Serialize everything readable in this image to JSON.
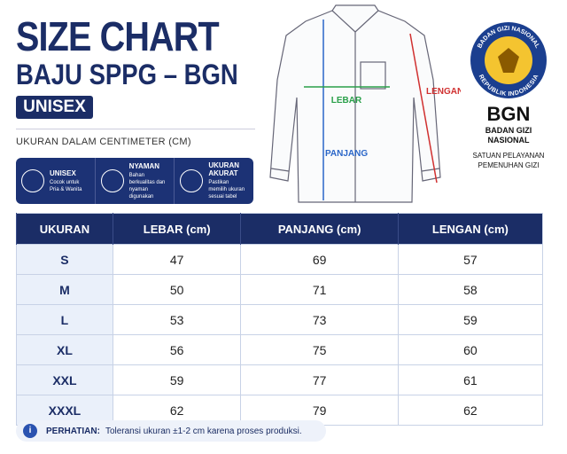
{
  "header": {
    "title": "SIZE CHART",
    "subtitle": "BAJU SPPG – BGN",
    "badge": "UNISEX",
    "note": "UKURAN DALAM CENTIMETER (CM)"
  },
  "features": [
    {
      "title": "UNISEX",
      "description": "Cocok untuk Pria & Wanita"
    },
    {
      "title": "NYAMAN",
      "description": "Bahan berkualitas dan nyaman digunakan"
    },
    {
      "title": "UKURAN AKURAT",
      "description": "Pastikan memilih ukuran sesuai tabel"
    }
  ],
  "diagram": {
    "width_label": "LEBAR",
    "length_label": "PANJANG",
    "sleeve_label": "LENGAN"
  },
  "logo": {
    "ring_top": "BADAN GIZI NASIONAL",
    "ring_bottom": "REPUBLIK INDONESIA",
    "acronym": "BGN",
    "name_line1": "BADAN GIZI",
    "name_line2": "NASIONAL",
    "unit_line1": "SATUAN PELAYANAN",
    "unit_line2": "PEMENUHAN GIZI"
  },
  "table": {
    "headers": [
      "UKURAN",
      "LEBAR (cm)",
      "PANJANG (cm)",
      "LENGAN (cm)"
    ],
    "rows": [
      [
        "S",
        47,
        69,
        57
      ],
      [
        "M",
        50,
        71,
        58
      ],
      [
        "L",
        53,
        73,
        59
      ],
      [
        "XL",
        56,
        75,
        60
      ],
      [
        "XXL",
        59,
        77,
        61
      ],
      [
        "XXXL",
        62,
        79,
        62
      ]
    ]
  },
  "footer": {
    "label": "PERHATIAN:",
    "text": "Toleransi ukuran ±1-2 cm karena proses produksi."
  }
}
